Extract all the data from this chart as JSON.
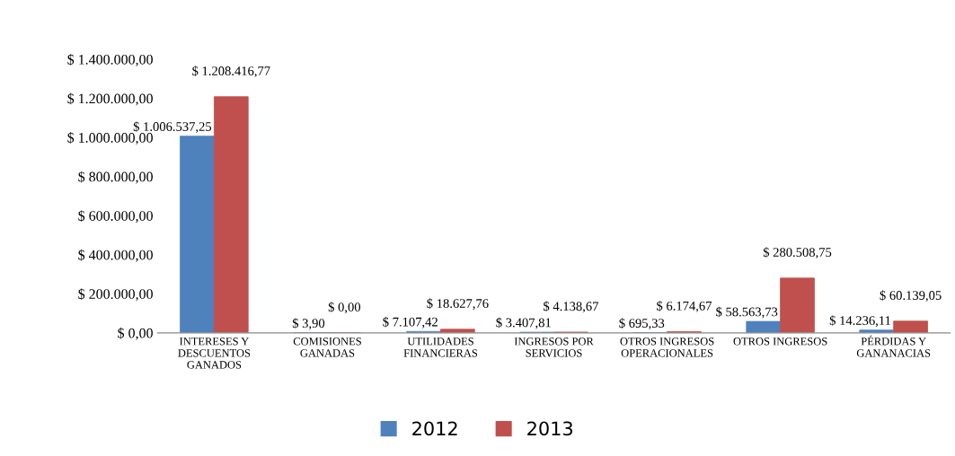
{
  "chart_data": {
    "type": "bar",
    "categories": [
      "INTERESES Y\nDESCUENTOS\nGANADOS",
      "COMISIONES\nGANADAS",
      "UTILIDADES\nFINANCIERAS",
      "INGRESOS POR\nSERVICIOS",
      "OTROS INGRESOS\nOPERACIONALES",
      "OTROS INGRESOS",
      "PÉRDIDAS Y\nGANANACIAS"
    ],
    "series": [
      {
        "name": "2012",
        "color": "#4f81bd",
        "values": [
          1006537.25,
          3.9,
          7107.42,
          3407.81,
          695.33,
          58563.73,
          14236.11
        ],
        "value_labels": [
          "$ 1.006.537,25",
          "$ 3,90",
          "$ 7.107,42",
          "$ 3.407,81",
          "$ 695,33",
          "$ 58.563,73",
          "$ 14.236,11"
        ]
      },
      {
        "name": "2013",
        "color": "#c0504d",
        "values": [
          1208416.77,
          0.0,
          18627.76,
          4138.67,
          6174.67,
          280508.75,
          60139.05
        ],
        "value_labels": [
          "$ 1.208.416,77",
          "$ 0,00",
          "$ 18.627,76",
          "$ 4.138,67",
          "$ 6.174,67",
          "$ 280.508,75",
          "$ 60.139,05"
        ]
      }
    ],
    "ylim": [
      0,
      1400000
    ],
    "yticks": [
      {
        "value": 0,
        "label": "$ 0,00"
      },
      {
        "value": 200000,
        "label": "$ 200.000,00"
      },
      {
        "value": 400000,
        "label": "$ 400.000,00"
      },
      {
        "value": 600000,
        "label": "$ 600.000,00"
      },
      {
        "value": 800000,
        "label": "$ 800.000,00"
      },
      {
        "value": 1000000,
        "label": "$ 1.000.000,00"
      },
      {
        "value": 1200000,
        "label": "$ 1.200.000,00"
      },
      {
        "value": 1400000,
        "label": "$ 1.400.000,00"
      }
    ],
    "grid": false,
    "legend": "bottom"
  }
}
